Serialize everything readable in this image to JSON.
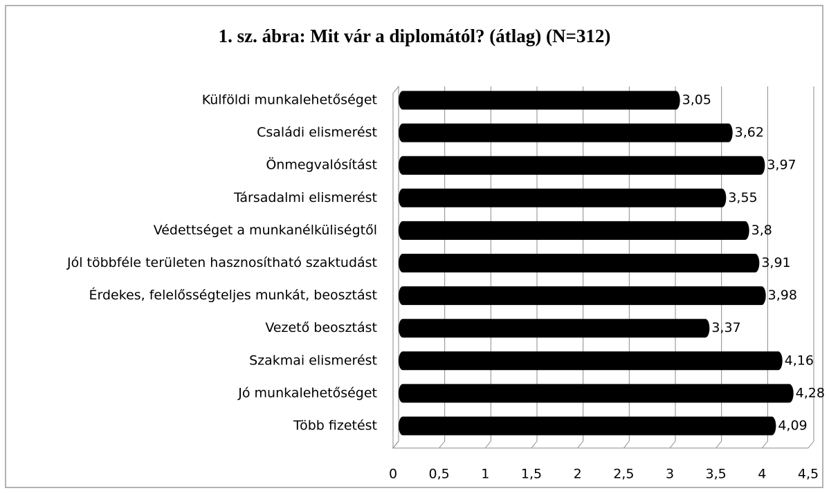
{
  "chart_data": {
    "type": "bar",
    "orientation": "horizontal",
    "title": "1. sz. ábra: Mit vár a diplomától? (átlag) (N=312)",
    "categories": [
      "Külföldi munkalehetőséget",
      "Családi elismerést",
      "Önmegvalósítást",
      "Társadalmi elismerést",
      "Védettséget a munkanélküliségtől",
      "Jól többféle területen hasznosítható szaktudást",
      "Érdekes, felelősségteljes munkát, beosztást",
      "Vezető beosztást",
      "Szakmai elismerést",
      "Jó munkalehetőséget",
      "Több fizetést"
    ],
    "values": [
      3.05,
      3.62,
      3.97,
      3.55,
      3.8,
      3.91,
      3.98,
      3.37,
      4.16,
      4.28,
      4.09
    ],
    "value_labels": [
      "3,05",
      "3,62",
      "3,97",
      "3,55",
      "3,8",
      "3,91",
      "3,98",
      "3,37",
      "4,16",
      "4,28",
      "4,09"
    ],
    "color": "#000000",
    "xlim": [
      0,
      4.5
    ],
    "xticks": [
      0,
      {
        "value": 0.5,
        "label": "0,5"
      },
      1,
      {
        "value": 1.5,
        "label": "1,5"
      },
      2,
      {
        "value": 2.5,
        "label": "2,5"
      },
      3,
      {
        "value": 3.5,
        "label": "3,5"
      },
      4,
      {
        "value": 4.5,
        "label": "4,5"
      }
    ],
    "grid": true
  }
}
